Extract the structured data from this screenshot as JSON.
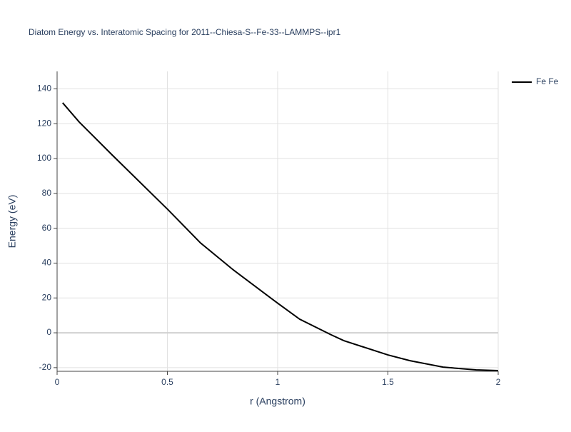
{
  "chart_data": {
    "type": "line",
    "title": "Diatom Energy vs. Interatomic Spacing for 2011--Chiesa-S--Fe-33--LAMMPS--ipr1",
    "x_label": "r (Angstrom)",
    "y_label": "Energy (eV)",
    "x": [
      0.025,
      0.1,
      0.25,
      0.5,
      0.65,
      0.8,
      1.0,
      1.1,
      1.24,
      1.3,
      1.5,
      1.6,
      1.75,
      1.9,
      2.0
    ],
    "series": [
      {
        "name": "Fe Fe",
        "color": "#000000",
        "values": [
          132,
          121,
          102,
          71,
          51.6,
          36,
          17,
          7.8,
          -1,
          -4.5,
          -12.7,
          -16,
          -19.7,
          -21.3,
          -21.7
        ]
      }
    ],
    "xlim": [
      0,
      2
    ],
    "xticks": [
      0,
      0.5,
      1,
      1.5,
      2
    ],
    "ylim": [
      -22.1,
      150
    ],
    "yticks": [
      -20,
      0,
      20,
      40,
      60,
      80,
      100,
      120,
      140
    ],
    "grid": true,
    "legend": "top-right"
  }
}
